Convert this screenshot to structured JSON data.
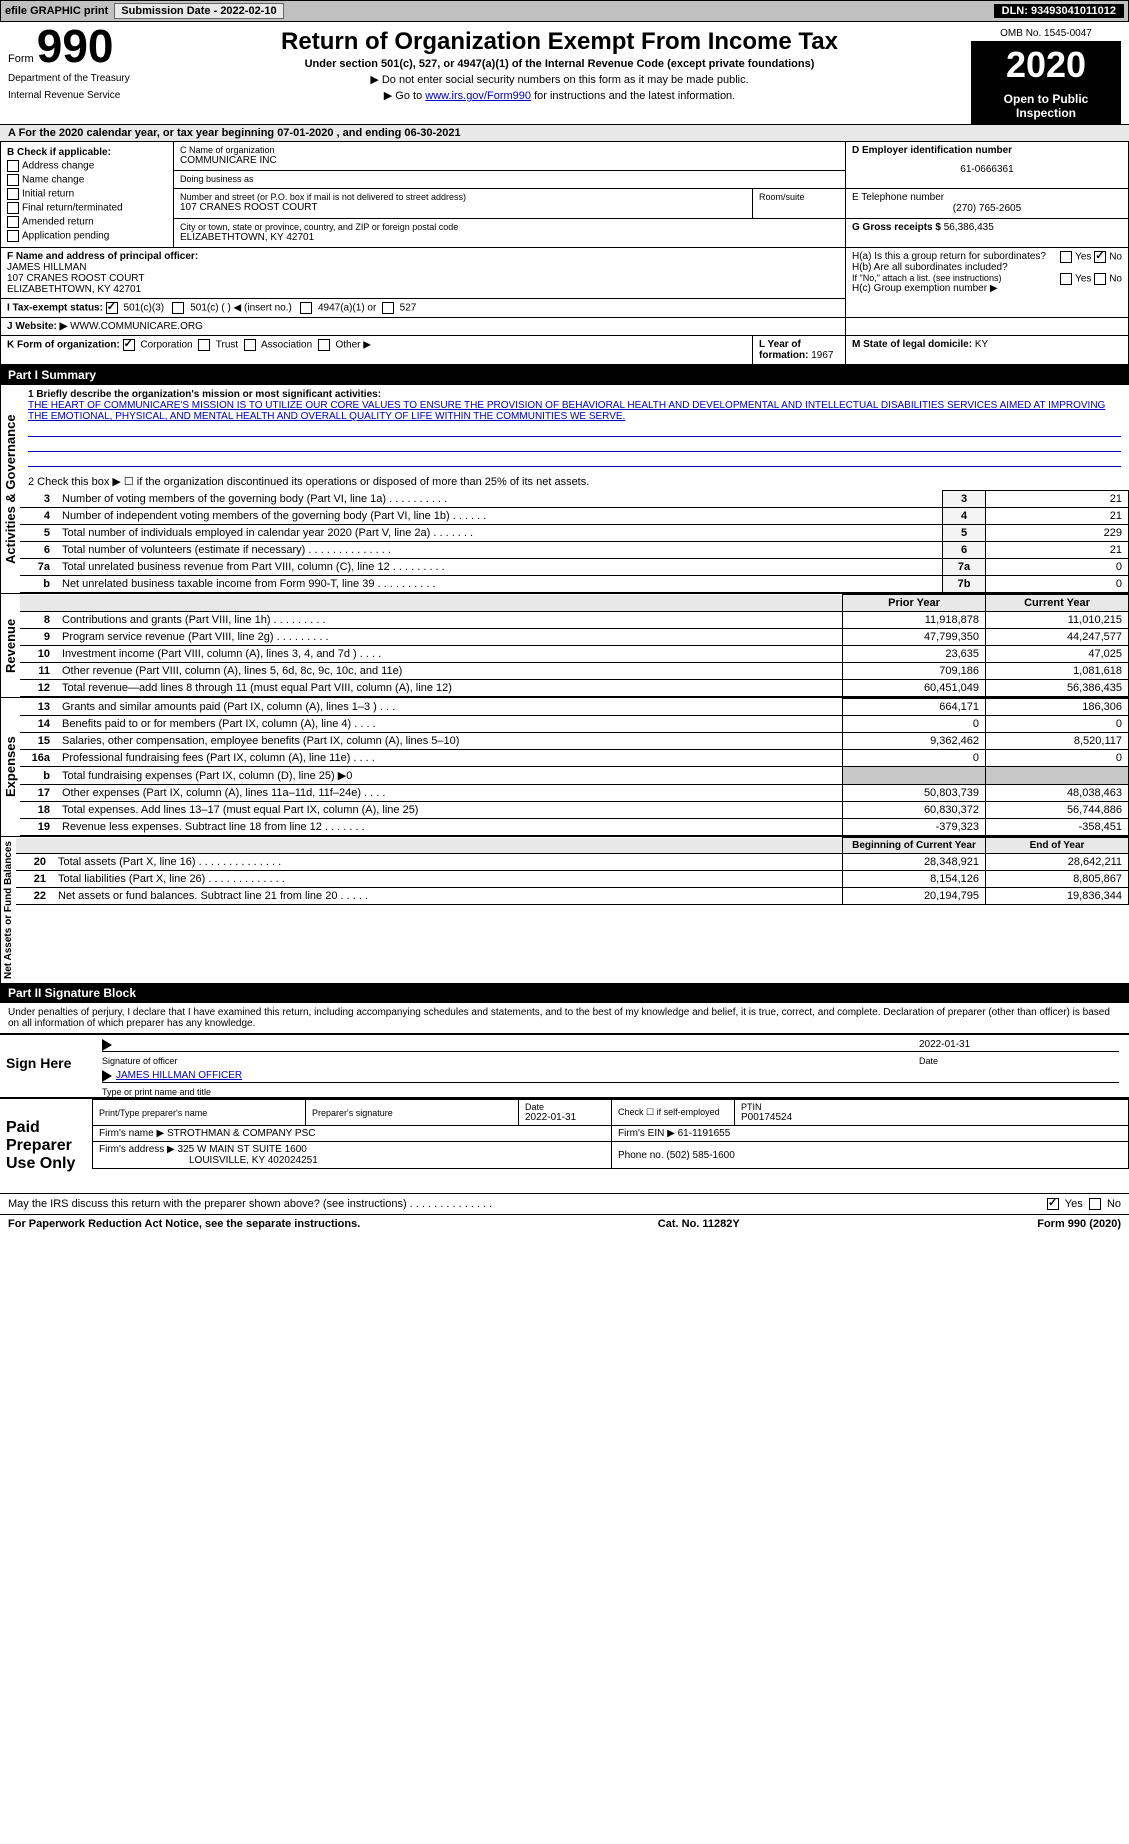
{
  "topbar": {
    "efile": "efile GRAPHIC print",
    "submission_label": "Submission Date - 2022-02-10",
    "dln_label": "DLN: 93493041011012"
  },
  "header": {
    "form_word": "Form",
    "form_num": "990",
    "dept1": "Department of the Treasury",
    "dept2": "Internal Revenue Service",
    "title": "Return of Organization Exempt From Income Tax",
    "subtitle": "Under section 501(c), 527, or 4947(a)(1) of the Internal Revenue Code (except private foundations)",
    "note1": "▶ Do not enter social security numbers on this form as it may be made public.",
    "note2_pre": "▶ Go to ",
    "note2_link": "www.irs.gov/Form990",
    "note2_post": " for instructions and the latest information.",
    "omb": "OMB No. 1545-0047",
    "year": "2020",
    "open": "Open to Public Inspection"
  },
  "period": {
    "line": "A For the 2020 calendar year, or tax year beginning 07-01-2020    , and ending 06-30-2021"
  },
  "sectionB": {
    "heading": "B Check if applicable:",
    "items": [
      "Address change",
      "Name change",
      "Initial return",
      "Final return/terminated",
      "Amended return",
      "Application pending"
    ]
  },
  "sectionC": {
    "label": "C Name of organization",
    "org_name": "COMMUNICARE INC",
    "dba_label": "Doing business as",
    "addr_label": "Number and street (or P.O. box if mail is not delivered to street address)",
    "room_label": "Room/suite",
    "address": "107 CRANES ROOST COURT",
    "city_label": "City or town, state or province, country, and ZIP or foreign postal code",
    "city": "ELIZABETHTOWN, KY  42701"
  },
  "sectionD": {
    "label": "D Employer identification number",
    "ein": "61-0666361"
  },
  "sectionE": {
    "label": "E Telephone number",
    "phone": "(270) 765-2605"
  },
  "sectionG": {
    "label": "G Gross receipts $",
    "amount": "56,386,435"
  },
  "sectionF": {
    "label": "F Name and address of principal officer:",
    "name": "JAMES HILLMAN",
    "addr1": "107 CRANES ROOST COURT",
    "addr2": "ELIZABETHTOWN, KY  42701"
  },
  "sectionH": {
    "ha": "H(a)  Is this a group return for subordinates?",
    "hb": "H(b)  Are all subordinates included?",
    "hb_note": "If \"No,\" attach a list. (see instructions)",
    "hc": "H(c)  Group exemption number ▶",
    "yes": "Yes",
    "no": "No"
  },
  "sectionI": {
    "label": "I    Tax-exempt status:",
    "opt1": "501(c)(3)",
    "opt2": "501(c) (   ) ◀ (insert no.)",
    "opt3": "4947(a)(1) or",
    "opt4": "527"
  },
  "sectionJ": {
    "label": "J   Website: ▶",
    "url": "WWW.COMMUNICARE.ORG"
  },
  "sectionK": {
    "label": "K Form of organization:",
    "opts": [
      "Corporation",
      "Trust",
      "Association",
      "Other ▶"
    ]
  },
  "sectionL": {
    "label": "L Year of formation:",
    "val": "1967"
  },
  "sectionM": {
    "label": "M State of legal domicile:",
    "val": "KY"
  },
  "part1": {
    "header": "Part I      Summary",
    "line1_label": "1  Briefly describe the organization's mission or most significant activities:",
    "mission": "THE HEART OF COMMUNICARE'S MISSION IS TO UTILIZE OUR CORE VALUES TO ENSURE THE PROVISION OF BEHAVIORAL HEALTH AND DEVELOPMENTAL AND INTELLECTUAL DISABILITIES SERVICES AIMED AT IMPROVING THE EMOTIONAL, PHYSICAL, AND MENTAL HEALTH AND OVERALL QUALITY OF LIFE WITHIN THE COMMUNITIES WE SERVE.",
    "line2": "2   Check this box ▶ ☐ if the organization discontinued its operations or disposed of more than 25% of its net assets.",
    "rows_gov": [
      {
        "n": "3",
        "desc": "Number of voting members of the governing body (Part VI, line 1a)   .    .    .    .    .    .    .    .    .    .",
        "box": "3",
        "val": "21"
      },
      {
        "n": "4",
        "desc": "Number of independent voting members of the governing body (Part VI, line 1b)  .    .    .    .    .    .",
        "box": "4",
        "val": "21"
      },
      {
        "n": "5",
        "desc": "Total number of individuals employed in calendar year 2020 (Part V, line 2a)  .    .    .    .    .    .    .",
        "box": "5",
        "val": "229"
      },
      {
        "n": "6",
        "desc": "Total number of volunteers (estimate if necessary)   .    .    .    .    .    .    .    .    .    .    .    .    .    .",
        "box": "6",
        "val": "21"
      },
      {
        "n": "7a",
        "desc": "Total unrelated business revenue from Part VIII, column (C), line 12   .    .    .    .    .    .    .    .    .",
        "box": "7a",
        "val": "0"
      },
      {
        "n": "b",
        "desc": "Net unrelated business taxable income from Form 990-T, line 39   .    .    .    .    .    .    .    .    .    .",
        "box": "7b",
        "val": "0"
      }
    ],
    "col_prior": "Prior Year",
    "col_current": "Current Year",
    "rows_rev": [
      {
        "n": "8",
        "desc": "Contributions and grants (Part VIII, line 1h)   .    .    .    .    .    .    .    .    .",
        "p": "11,918,878",
        "c": "11,010,215"
      },
      {
        "n": "9",
        "desc": "Program service revenue (Part VIII, line 2g)   .    .    .    .    .    .    .    .    .",
        "p": "47,799,350",
        "c": "44,247,577"
      },
      {
        "n": "10",
        "desc": "Investment income (Part VIII, column (A), lines 3, 4, and 7d )   .    .    .    .",
        "p": "23,635",
        "c": "47,025"
      },
      {
        "n": "11",
        "desc": "Other revenue (Part VIII, column (A), lines 5, 6d, 8c, 9c, 10c, and 11e)",
        "p": "709,186",
        "c": "1,081,618"
      },
      {
        "n": "12",
        "desc": "Total revenue—add lines 8 through 11 (must equal Part VIII, column (A), line 12)",
        "p": "60,451,049",
        "c": "56,386,435"
      }
    ],
    "rows_exp": [
      {
        "n": "13",
        "desc": "Grants and similar amounts paid (Part IX, column (A), lines 1–3 )   .    .    .",
        "p": "664,171",
        "c": "186,306"
      },
      {
        "n": "14",
        "desc": "Benefits paid to or for members (Part IX, column (A), line 4)   .    .    .    .",
        "p": "0",
        "c": "0"
      },
      {
        "n": "15",
        "desc": "Salaries, other compensation, employee benefits (Part IX, column (A), lines 5–10)",
        "p": "9,362,462",
        "c": "8,520,117"
      },
      {
        "n": "16a",
        "desc": "Professional fundraising fees (Part IX, column (A), line 11e)   .    .    .    .",
        "p": "0",
        "c": "0"
      },
      {
        "n": "b",
        "desc": "Total fundraising expenses (Part IX, column (D), line 25) ▶0",
        "p": "",
        "c": ""
      },
      {
        "n": "17",
        "desc": "Other expenses (Part IX, column (A), lines 11a–11d, 11f–24e)   .    .    .    .",
        "p": "50,803,739",
        "c": "48,038,463"
      },
      {
        "n": "18",
        "desc": "Total expenses. Add lines 13–17 (must equal Part IX, column (A), line 25)",
        "p": "60,830,372",
        "c": "56,744,886"
      },
      {
        "n": "19",
        "desc": "Revenue less expenses. Subtract line 18 from line 12   .    .    .    .    .    .    .",
        "p": "-379,323",
        "c": "-358,451"
      }
    ],
    "col_begin": "Beginning of Current Year",
    "col_end": "End of Year",
    "rows_net": [
      {
        "n": "20",
        "desc": "Total assets (Part X, line 16)   .    .    .    .    .    .    .    .    .    .    .    .    .    .",
        "p": "28,348,921",
        "c": "28,642,211"
      },
      {
        "n": "21",
        "desc": "Total liabilities (Part X, line 26)   .    .    .    .    .    .    .    .    .    .    .    .    .",
        "p": "8,154,126",
        "c": "8,805,867"
      },
      {
        "n": "22",
        "desc": "Net assets or fund balances. Subtract line 21 from line 20    .    .    .    .    .",
        "p": "20,194,795",
        "c": "19,836,344"
      }
    ],
    "side_gov": "Activities & Governance",
    "side_rev": "Revenue",
    "side_exp": "Expenses",
    "side_net": "Net Assets or Fund Balances"
  },
  "part2": {
    "header": "Part II      Signature Block",
    "penalty": "Under penalties of perjury, I declare that I have examined this return, including accompanying schedules and statements, and to the best of my knowledge and belief, it is true, correct, and complete. Declaration of preparer (other than officer) is based on all information of which preparer has any knowledge.",
    "sign_here": "Sign Here",
    "sig_date": "2022-01-31",
    "sig_label": "Signature of officer",
    "date_label": "Date",
    "officer_name": "JAMES HILLMAN OFFICER",
    "type_label": "Type or print name and title",
    "paid": "Paid Preparer Use Only",
    "prep_name_label": "Print/Type preparer's name",
    "prep_sig_label": "Preparer's signature",
    "prep_date": "2022-01-31",
    "check_self": "Check ☐ if self-employed",
    "ptin_label": "PTIN",
    "ptin": "P00174524",
    "firm_label": "Firm's name    ▶",
    "firm_name": "STROTHMAN & COMPANY PSC",
    "firm_ein_label": "Firm's EIN ▶",
    "firm_ein": "61-1191655",
    "firm_addr_label": "Firm's address ▶",
    "firm_addr1": "325 W MAIN ST SUITE 1600",
    "firm_addr2": "LOUISVILLE, KY  402024251",
    "firm_phone_label": "Phone no.",
    "firm_phone": "(502) 585-1600",
    "discuss": "May the IRS discuss this return with the preparer shown above? (see instructions)   .    .    .    .    .    .    .    .    .    .    .    .    .    ."
  },
  "footer": {
    "left": "For Paperwork Reduction Act Notice, see the separate instructions.",
    "mid": "Cat. No. 11282Y",
    "right": "Form 990 (2020)"
  }
}
